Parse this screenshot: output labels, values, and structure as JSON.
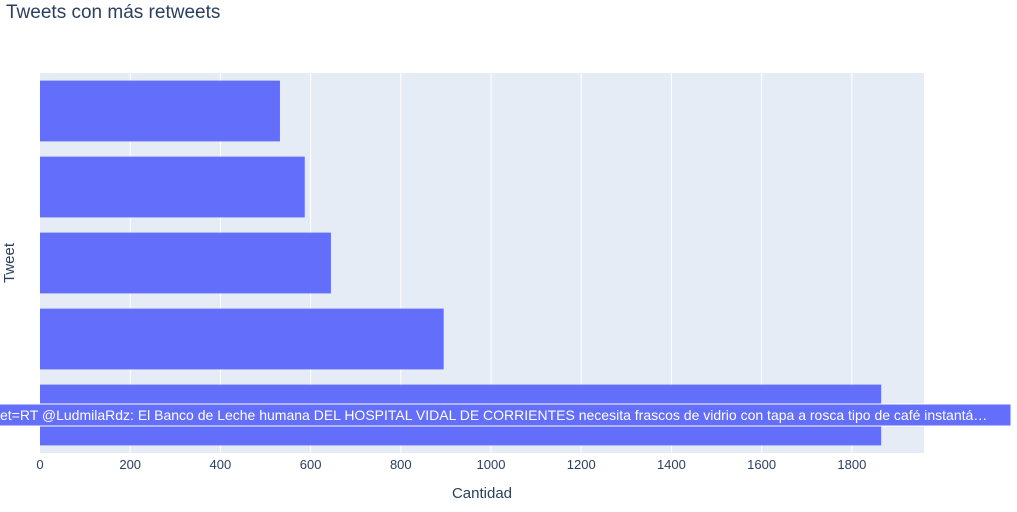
{
  "chart_data": {
    "type": "bar",
    "orientation": "horizontal",
    "title": "Tweets con más retweets",
    "xlabel": "Cantidad",
    "ylabel": "Tweet",
    "xlim": [
      0,
      1960
    ],
    "xticks": [
      0,
      200,
      400,
      600,
      800,
      1000,
      1200,
      1400,
      1600,
      1800
    ],
    "grid": true,
    "bar_color": "#636efa",
    "plot_bg": "#e5ecf6",
    "values": [
      1865,
      895,
      645,
      587,
      532
    ],
    "hover_label": "et=RT @LudmilaRdz: El Banco de Leche humana DEL HOSPITAL VIDAL DE CORRIENTES necesita frascos de vidrio con tapa a rosca tipo de café instantá…",
    "hovered_bar_index": 0
  }
}
